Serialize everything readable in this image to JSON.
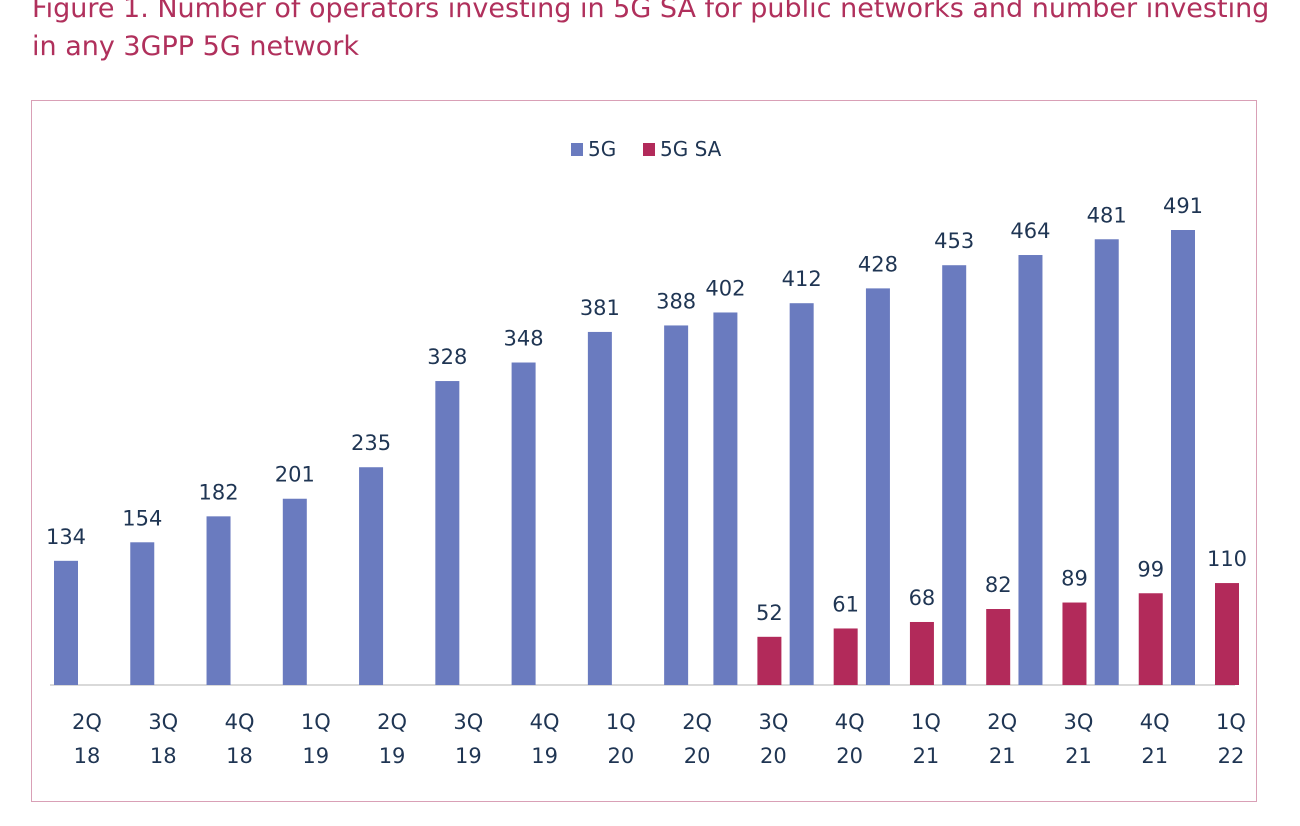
{
  "figure": {
    "title": "Figure 1. Number of operators investing in 5G SA for public networks and number investing in any 3GPP 5G network"
  },
  "chart_data": {
    "type": "bar",
    "title": "",
    "xlabel": "",
    "ylabel": "",
    "categories": [
      [
        "2Q",
        "18"
      ],
      [
        "3Q",
        "18"
      ],
      [
        "4Q",
        "18"
      ],
      [
        "1Q",
        "19"
      ],
      [
        "2Q",
        "19"
      ],
      [
        "3Q",
        "19"
      ],
      [
        "4Q",
        "19"
      ],
      [
        "1Q",
        "20"
      ],
      [
        "2Q",
        "20"
      ],
      [
        "3Q",
        "20"
      ],
      [
        "4Q",
        "20"
      ],
      [
        "1Q",
        "21"
      ],
      [
        "2Q",
        "21"
      ],
      [
        "3Q",
        "21"
      ],
      [
        "4Q",
        "21"
      ],
      [
        "1Q",
        "22"
      ]
    ],
    "series": [
      {
        "name": "5G",
        "color": "#6a7bbf",
        "values": [
          134,
          154,
          182,
          201,
          235,
          328,
          348,
          381,
          388,
          402,
          412,
          428,
          453,
          464,
          481,
          491
        ]
      },
      {
        "name": "5G SA",
        "color": "#b22a5a",
        "values": [
          null,
          null,
          null,
          null,
          null,
          null,
          null,
          null,
          null,
          52,
          61,
          68,
          82,
          89,
          99,
          110
        ]
      }
    ],
    "ylim": [
      0,
      520
    ],
    "grid": false,
    "data_labels": true,
    "legend_position": "top-center",
    "axis_color": "#d9d9d9",
    "label_color": "#1f3553"
  }
}
